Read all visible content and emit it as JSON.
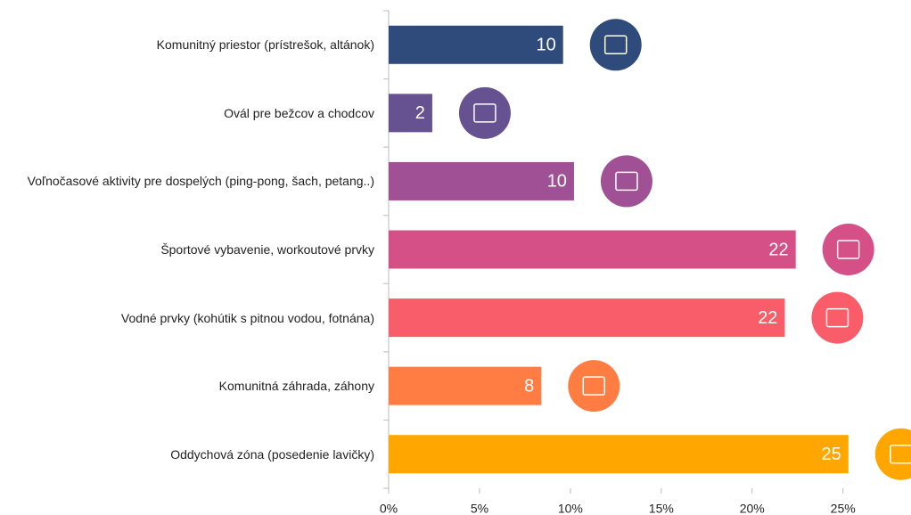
{
  "chart_data": {
    "type": "bar",
    "orientation": "horizontal",
    "categories": [
      "Komunitný priestor (prístrešok, altánok)",
      "Ovál pre bežcov a chodcov",
      "Voľnočasové aktivity pre dospelých (ping-pong, šach, petang..)",
      "Športové vybavenie, workoutové prvky",
      "Vodné prvky (kohútik s pitnou vodou, fotnána)",
      "Komunitná záhrada, záhony",
      "Oddychová zóna (posedenie lavičky)"
    ],
    "values": [
      9.6,
      2.4,
      10.2,
      22.4,
      21.8,
      8.4,
      25.3
    ],
    "value_labels": [
      "10",
      "2",
      "10",
      "22",
      "22",
      "8",
      "25"
    ],
    "colors": [
      "#2f4b7c",
      "#665191",
      "#a05195",
      "#d45087",
      "#f95d6a",
      "#ff7c43",
      "#ffa600"
    ],
    "xlim": [
      0,
      28.4
    ],
    "xticks": [
      {
        "value": 0,
        "label": "0%"
      },
      {
        "value": 5,
        "label": "5%"
      },
      {
        "value": 10,
        "label": "10%"
      },
      {
        "value": 15,
        "label": "15%"
      },
      {
        "value": 20,
        "label": "20%"
      },
      {
        "value": 25,
        "label": "25%"
      }
    ]
  }
}
